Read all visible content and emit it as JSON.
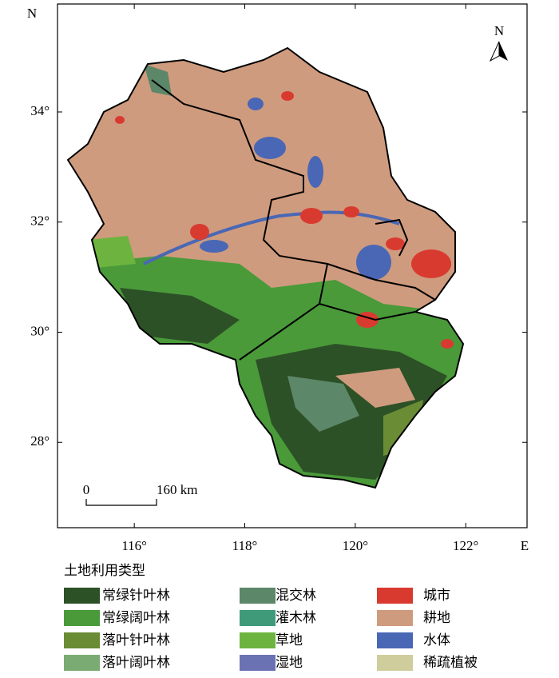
{
  "map": {
    "y_label": "N",
    "x_label": "E",
    "xlim": [
      114.61,
      123.11
    ],
    "ylim": [
      26.45,
      35.96
    ],
    "xticks": [
      {
        "value": 116,
        "label": "116°"
      },
      {
        "value": 118,
        "label": "118°"
      },
      {
        "value": 120,
        "label": "120°"
      },
      {
        "value": 122,
        "label": "122°"
      }
    ],
    "yticks": [
      {
        "value": 28,
        "label": "28°"
      },
      {
        "value": 30,
        "label": "30°"
      },
      {
        "value": 32,
        "label": "32°"
      },
      {
        "value": 34,
        "label": "34°"
      }
    ],
    "north_arrow": "N",
    "scale_bar": {
      "start": "0",
      "end": "160 km"
    }
  },
  "legend": {
    "title": "土地利用类型",
    "items": [
      {
        "name": "常绿针叶林",
        "color": "#2d5127"
      },
      {
        "name": "常绿阔叶林",
        "color": "#4a9a3a"
      },
      {
        "name": "落叶针叶林",
        "color": "#6a8c35"
      },
      {
        "name": "落叶阔叶林",
        "color": "#7aab72"
      },
      {
        "name": "混交林",
        "color": "#5c8768"
      },
      {
        "name": "灌木林",
        "color": "#3f9a7a"
      },
      {
        "name": "草地",
        "color": "#6cb43f"
      },
      {
        "name": "湿地",
        "color": "#6b72b4"
      },
      {
        "name": "城市",
        "color": "#d93a30"
      },
      {
        "name": "耕地",
        "color": "#cf9b7e"
      },
      {
        "name": "水体",
        "color": "#4a67b5"
      },
      {
        "name": "稀疏植被",
        "color": "#cfcd9c"
      }
    ]
  }
}
